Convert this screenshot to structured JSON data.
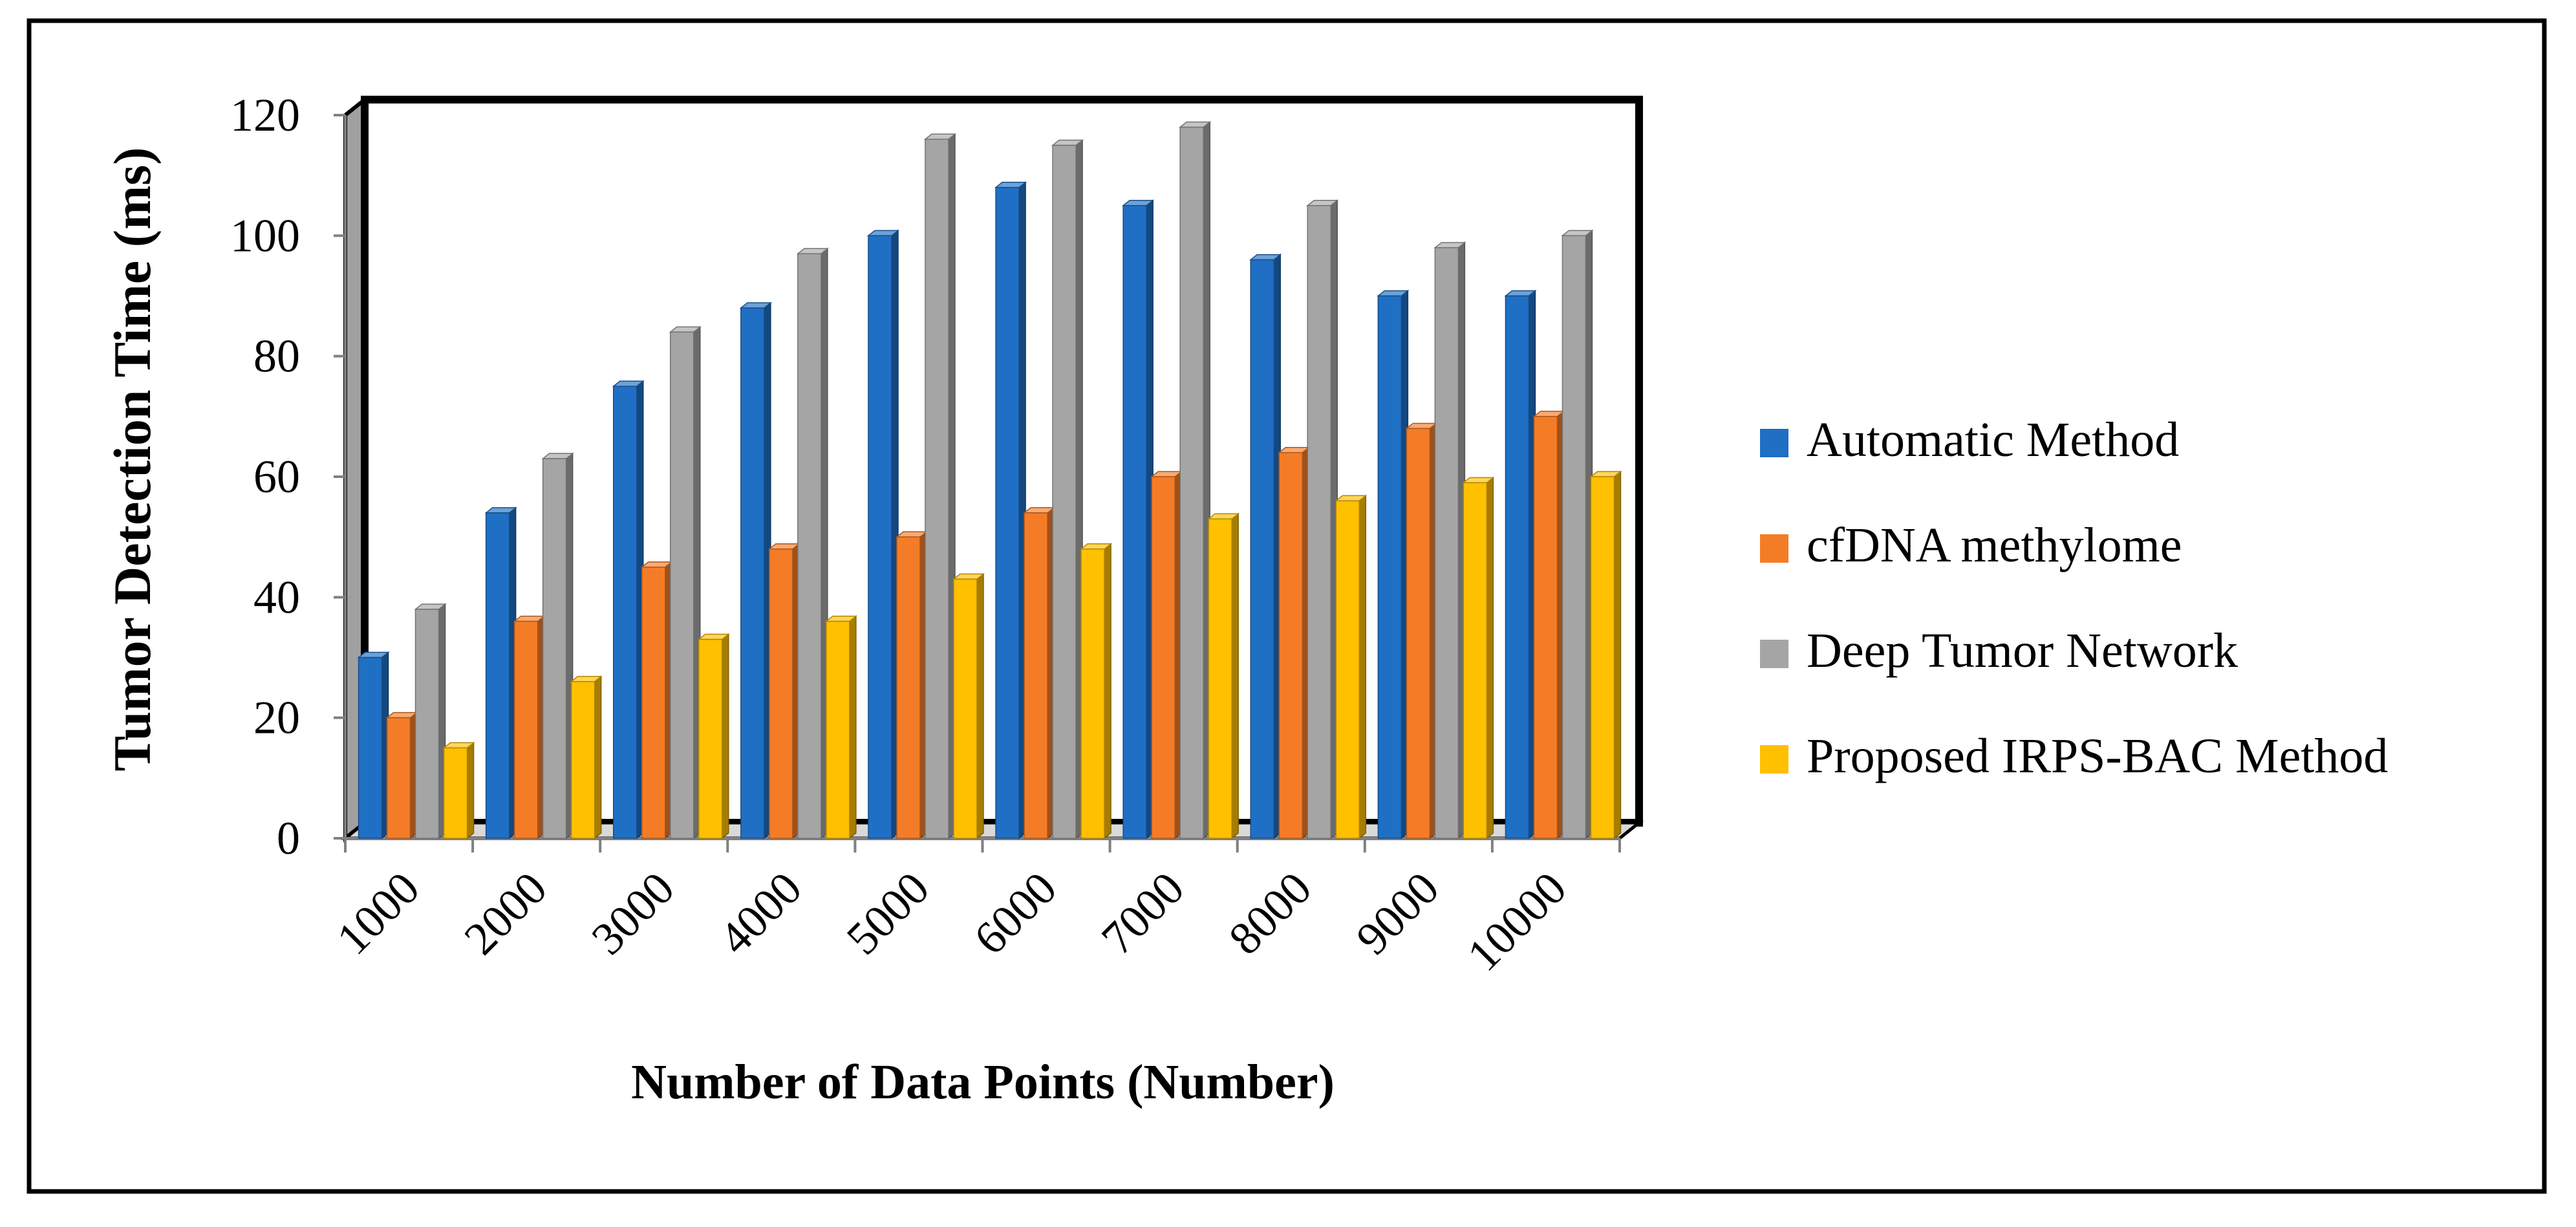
{
  "chart_data": {
    "type": "bar",
    "style": "3d-clustered-column",
    "title": "",
    "xlabel": "Number of Data Points (Number)",
    "ylabel": "Tumor Detection Time (ms)",
    "ylim": [
      0,
      120
    ],
    "yticks": [
      0,
      20,
      40,
      60,
      80,
      100,
      120
    ],
    "grid": false,
    "legend_position": "right",
    "categories": [
      "1000",
      "2000",
      "3000",
      "4000",
      "5000",
      "6000",
      "7000",
      "8000",
      "9000",
      "10000"
    ],
    "series": [
      {
        "name": "Automatic Method",
        "color": "#1F6FC5",
        "values": [
          30,
          54,
          75,
          88,
          100,
          108,
          105,
          96,
          90,
          90
        ]
      },
      {
        "name": "cfDNA methylome",
        "color": "#F57C26",
        "values": [
          20,
          36,
          45,
          48,
          50,
          54,
          60,
          64,
          68,
          70
        ]
      },
      {
        "name": "Deep Tumor Network",
        "color": "#A5A5A5",
        "values": [
          38,
          63,
          84,
          97,
          116,
          115,
          118,
          105,
          98,
          100
        ]
      },
      {
        "name": "Proposed IRPS-BAC Method",
        "color": "#FFC000",
        "values": [
          15,
          26,
          33,
          36,
          43,
          48,
          53,
          56,
          59,
          60
        ]
      }
    ]
  }
}
